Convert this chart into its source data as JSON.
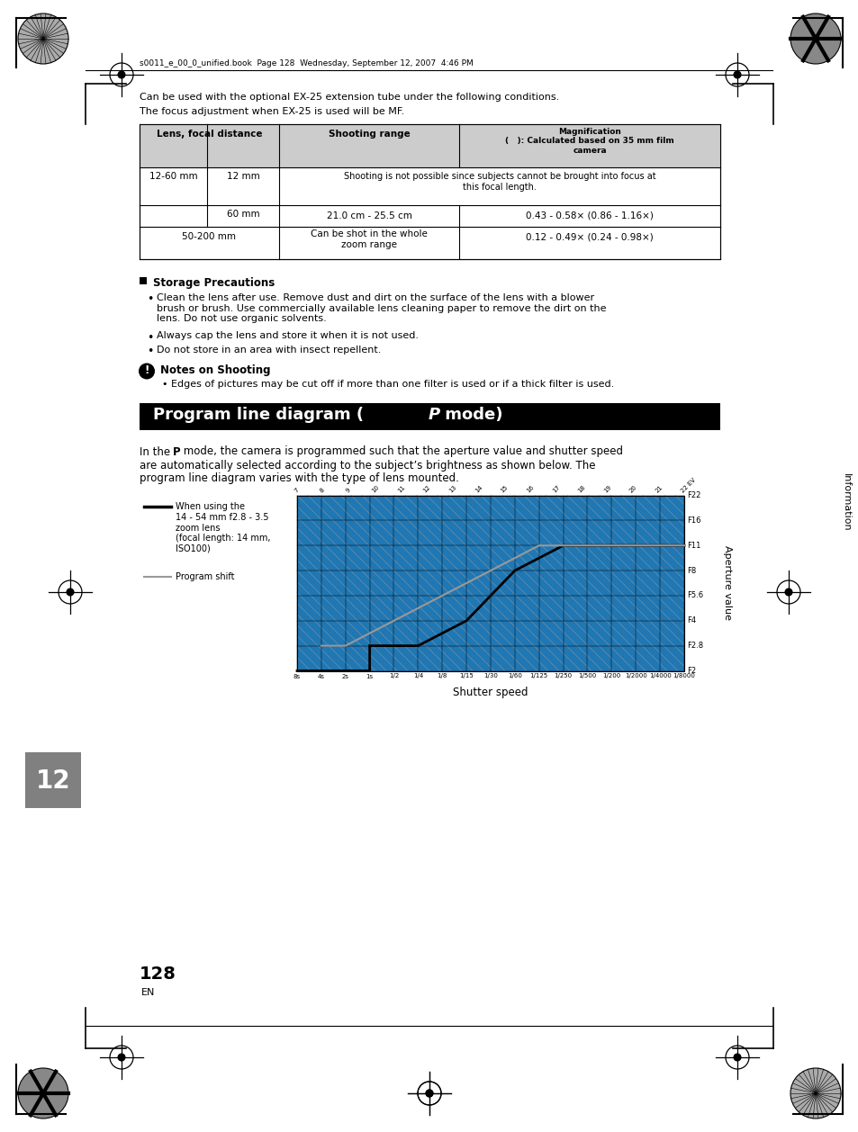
{
  "page_header": "s0011_e_00_0_unified.book  Page 128  Wednesday, September 12, 2007  4:46 PM",
  "page_num": "128",
  "page_sub": "EN",
  "chapter_num": "12",
  "body_text_1": "Can be used with the optional EX-25 extension tube under the following conditions.",
  "body_text_2": "The focus adjustment when EX-25 is used will be MF.",
  "storage_title": "Storage Precautions",
  "storage_bullets": [
    "Clean the lens after use. Remove dust and dirt on the surface of the lens with a blower\nbrush or brush. Use commercially available lens cleaning paper to remove the dirt on the\nlens. Do not use organic solvents.",
    "Always cap the lens and store it when it is not used.",
    "Do not store in an area with insect repellent."
  ],
  "notes_title": "Notes on Shooting",
  "notes_bullet": "Edges of pictures may be cut off if more than one filter is used or if a thick filter is used.",
  "program_body": "In the  P  mode, the camera is programmed such that the aperture value and shutter speed\nare automatically selected according to the subject’s brightness as shown below. The\nprogram line diagram varies with the type of lens mounted.",
  "legend_1": "When using the\n14 - 54 mm f2.8 - 3.5\nzoom lens\n(focal length: 14 mm,\nISO100)",
  "legend_2": "Program shift",
  "ev_labels": [
    "7",
    "8",
    "9",
    "10",
    "11",
    "12",
    "13",
    "14",
    "15",
    "16",
    "17",
    "18",
    "19",
    "20",
    "21",
    "22 EV"
  ],
  "aperture_labels": [
    "F22",
    "F16",
    "F11",
    "F8",
    "F5.6",
    "F4",
    "F2.8",
    "F2"
  ],
  "shutter_labels": [
    "8s",
    "4s",
    "2s",
    "1s",
    "1/2",
    "1/4",
    "1/8",
    "1/15",
    "1/30",
    "1/60",
    "1/125",
    "1/250",
    "1/500",
    "1/200",
    "1/2000",
    "1/4000",
    "1/8000"
  ],
  "bg_color": "#ffffff",
  "chapter_bg": "#808080",
  "info_text": "Information"
}
